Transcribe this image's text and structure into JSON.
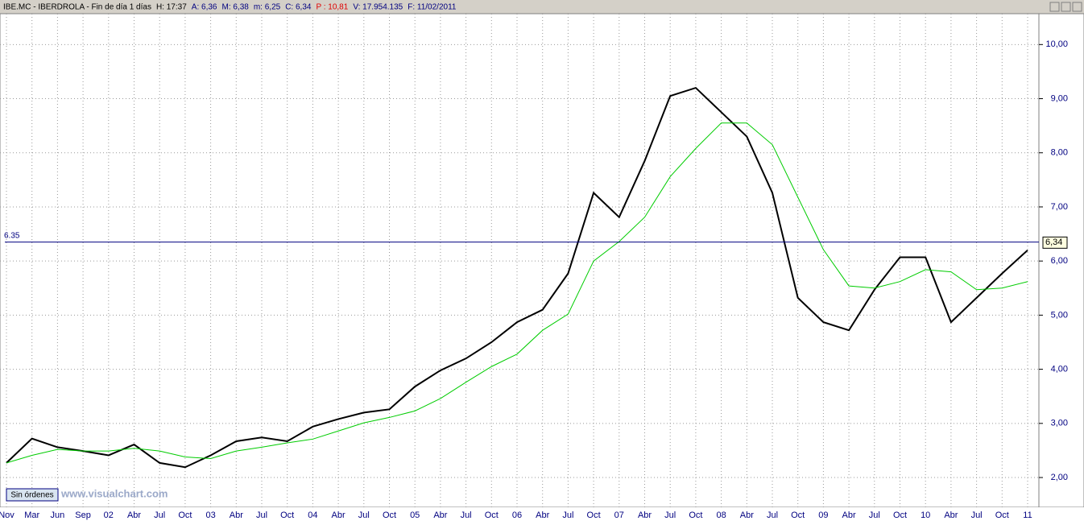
{
  "header": {
    "symbol": "IBE.MC - IBERDROLA - Fin de día 1 días",
    "fields": [
      "H: 17:37",
      "A: 6,36",
      "M: 6,38",
      "m: 6,25",
      "C: 6,34",
      "P : 10,81",
      "V: 17.954.135",
      "F: 11/02/2011"
    ]
  },
  "ui": {
    "orders_button": "Sin órdenes",
    "watermark": "www.visualchart.com"
  },
  "chart_data": {
    "type": "line",
    "categories": [
      "Nov",
      "Mar",
      "Jun",
      "Sep",
      "02",
      "Abr",
      "Jul",
      "Oct",
      "03",
      "Abr",
      "Jul",
      "Oct",
      "04",
      "Abr",
      "Jul",
      "Oct",
      "05",
      "Abr",
      "Jul",
      "Oct",
      "06",
      "Abr",
      "Jul",
      "Oct",
      "07",
      "Abr",
      "Jul",
      "Oct",
      "08",
      "Abr",
      "Jul",
      "Oct",
      "09",
      "Abr",
      "Jul",
      "Oct",
      "10",
      "Abr",
      "Jul",
      "Oct",
      "11"
    ],
    "series": [
      {
        "color": "#000000",
        "values": [
          2.27,
          2.72,
          2.56,
          2.49,
          2.41,
          2.61,
          2.27,
          2.19,
          2.41,
          2.67,
          2.74,
          2.67,
          2.94,
          3.08,
          3.2,
          3.26,
          3.68,
          3.98,
          4.2,
          4.5,
          4.87,
          5.1,
          5.77,
          7.26,
          6.81,
          7.85,
          9.05,
          9.2,
          8.75,
          8.3,
          7.26,
          5.32,
          4.87,
          4.72,
          5.47,
          6.07,
          6.07,
          4.87,
          5.32,
          5.77,
          6.2
        ]
      },
      {
        "color": "#00cc00",
        "values": [
          2.27,
          2.41,
          2.52,
          2.49,
          2.49,
          2.54,
          2.49,
          2.38,
          2.35,
          2.49,
          2.56,
          2.64,
          2.71,
          2.86,
          3.01,
          3.11,
          3.23,
          3.46,
          3.76,
          4.05,
          4.28,
          4.72,
          5.02,
          6.0,
          6.36,
          6.81,
          7.56,
          8.08,
          8.55,
          8.55,
          8.15,
          7.18,
          6.21,
          5.54,
          5.5,
          5.62,
          5.84,
          5.8,
          5.47,
          5.5,
          5.62
        ]
      }
    ],
    "ylim": [
      1.45,
      10.57
    ],
    "yticks": [
      {
        "value": 2,
        "label": "2,00"
      },
      {
        "value": 3,
        "label": "3,00"
      },
      {
        "value": 4,
        "label": "4,00"
      },
      {
        "value": 5,
        "label": "5,00"
      },
      {
        "value": 6,
        "label": "6,00"
      },
      {
        "value": 7,
        "label": "7,00"
      },
      {
        "value": 8,
        "label": "8,00"
      },
      {
        "value": 9,
        "label": "9,00"
      },
      {
        "value": 10,
        "label": "10,00"
      }
    ],
    "grid": true,
    "reference_line": {
      "value": 6.35,
      "label": "6.35",
      "color": "#000080"
    },
    "last_price": {
      "value": 6.34,
      "label": "6,34"
    }
  }
}
